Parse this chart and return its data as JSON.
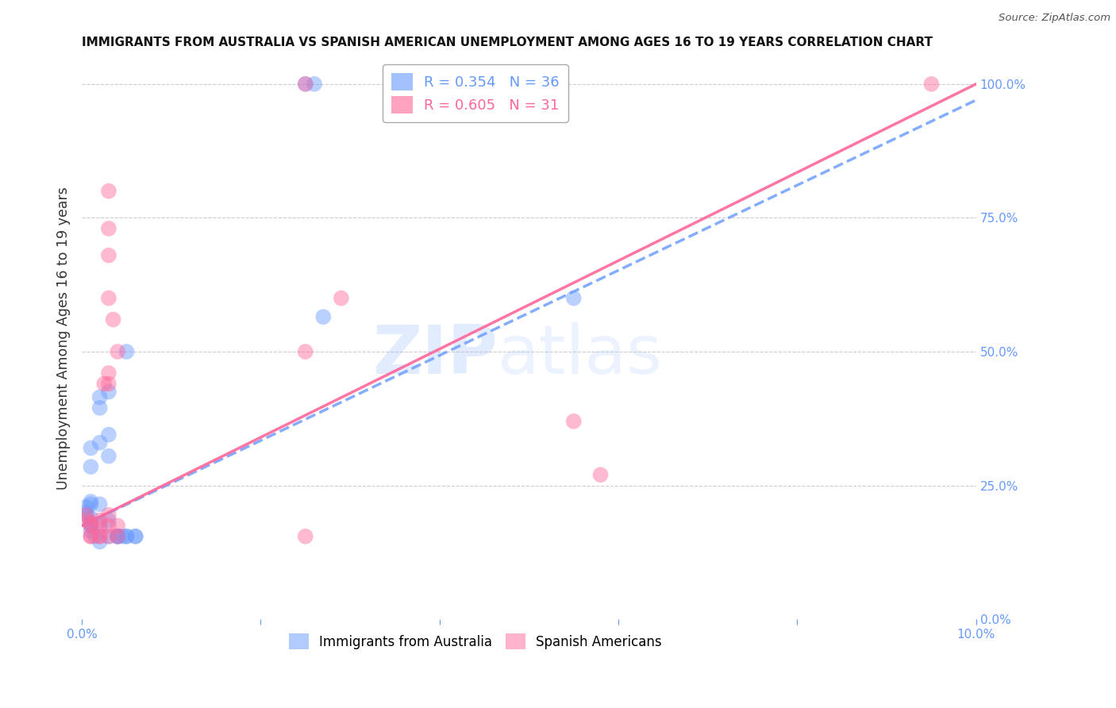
{
  "title": "IMMIGRANTS FROM AUSTRALIA VS SPANISH AMERICAN UNEMPLOYMENT AMONG AGES 16 TO 19 YEARS CORRELATION CHART",
  "source": "Source: ZipAtlas.com",
  "ylabel": "Unemployment Among Ages 16 to 19 years",
  "xlim": [
    0.0,
    0.1
  ],
  "ylim": [
    0.0,
    1.05
  ],
  "right_yticks": [
    0.0,
    0.25,
    0.5,
    0.75,
    1.0
  ],
  "right_yticklabels": [
    "0.0%",
    "25.0%",
    "50.0%",
    "75.0%",
    "100.0%"
  ],
  "legend1_text": "R = 0.354   N = 36",
  "legend2_text": "R = 0.605   N = 31",
  "blue_color": "#6699FF",
  "pink_color": "#FF6699",
  "blue_line": [
    [
      0.0,
      0.175
    ],
    [
      0.1,
      0.97
    ]
  ],
  "pink_line": [
    [
      0.0,
      0.175
    ],
    [
      0.1,
      1.0
    ]
  ],
  "blue_scatter": [
    [
      0.001,
      0.175
    ],
    [
      0.001,
      0.32
    ],
    [
      0.001,
      0.285
    ],
    [
      0.001,
      0.215
    ],
    [
      0.001,
      0.22
    ],
    [
      0.001,
      0.19
    ],
    [
      0.001,
      0.18
    ],
    [
      0.0005,
      0.21
    ],
    [
      0.0005,
      0.2
    ],
    [
      0.0005,
      0.195
    ],
    [
      0.001,
      0.165
    ],
    [
      0.0015,
      0.155
    ],
    [
      0.002,
      0.145
    ],
    [
      0.002,
      0.33
    ],
    [
      0.002,
      0.395
    ],
    [
      0.002,
      0.415
    ],
    [
      0.002,
      0.215
    ],
    [
      0.002,
      0.175
    ],
    [
      0.003,
      0.185
    ],
    [
      0.003,
      0.305
    ],
    [
      0.003,
      0.345
    ],
    [
      0.003,
      0.425
    ],
    [
      0.003,
      0.155
    ],
    [
      0.004,
      0.155
    ],
    [
      0.004,
      0.155
    ],
    [
      0.004,
      0.155
    ],
    [
      0.0045,
      0.155
    ],
    [
      0.005,
      0.155
    ],
    [
      0.005,
      0.155
    ],
    [
      0.005,
      0.5
    ],
    [
      0.006,
      0.155
    ],
    [
      0.006,
      0.155
    ],
    [
      0.025,
      1.0
    ],
    [
      0.026,
      1.0
    ],
    [
      0.027,
      0.565
    ],
    [
      0.055,
      0.6
    ]
  ],
  "pink_scatter": [
    [
      0.0005,
      0.185
    ],
    [
      0.0005,
      0.195
    ],
    [
      0.001,
      0.155
    ],
    [
      0.001,
      0.155
    ],
    [
      0.001,
      0.175
    ],
    [
      0.001,
      0.18
    ],
    [
      0.002,
      0.155
    ],
    [
      0.002,
      0.155
    ],
    [
      0.002,
      0.175
    ],
    [
      0.002,
      0.185
    ],
    [
      0.003,
      0.155
    ],
    [
      0.003,
      0.175
    ],
    [
      0.003,
      0.195
    ],
    [
      0.003,
      0.44
    ],
    [
      0.003,
      0.46
    ],
    [
      0.003,
      0.6
    ],
    [
      0.003,
      0.68
    ],
    [
      0.0025,
      0.44
    ],
    [
      0.0035,
      0.56
    ],
    [
      0.004,
      0.155
    ],
    [
      0.004,
      0.175
    ],
    [
      0.004,
      0.5
    ],
    [
      0.025,
      0.155
    ],
    [
      0.025,
      0.5
    ],
    [
      0.025,
      1.0
    ],
    [
      0.029,
      0.6
    ],
    [
      0.055,
      0.37
    ],
    [
      0.058,
      0.27
    ],
    [
      0.003,
      0.8
    ],
    [
      0.003,
      0.73
    ],
    [
      0.095,
      1.0
    ]
  ],
  "watermark_zip": "ZIP",
  "watermark_atlas": "atlas"
}
